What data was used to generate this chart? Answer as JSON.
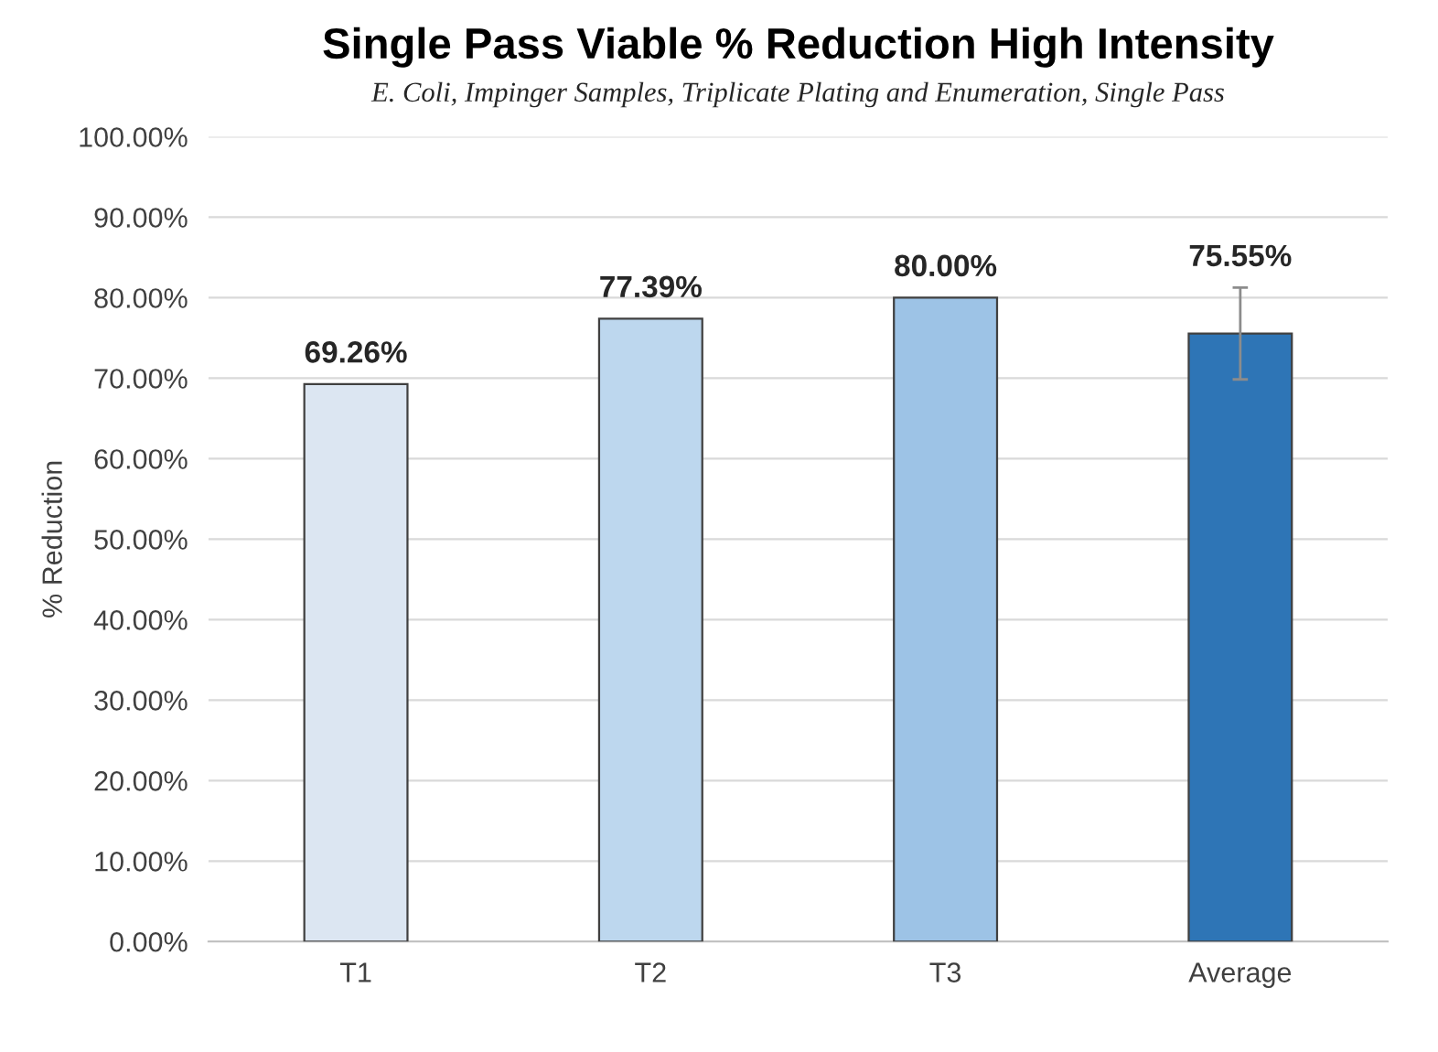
{
  "chart_data": {
    "type": "bar",
    "title": "Single Pass Viable % Reduction High Intensity",
    "subtitle": "E. Coli, Impinger Samples, Triplicate Plating and Enumeration, Single Pass",
    "ylabel": "% Reduction",
    "categories": [
      "T1",
      "T2",
      "T3",
      "Average"
    ],
    "values": [
      69.26,
      77.39,
      80.0,
      75.55
    ],
    "colors": [
      "#dce6f2",
      "#bdd7ee",
      "#9dc3e6",
      "#2e75b6"
    ],
    "errors": [
      null,
      null,
      null,
      5.7
    ],
    "value_labels": [
      "69.26%",
      "77.39%",
      "80.00%",
      "75.55%"
    ],
    "ylim": [
      0,
      100
    ],
    "yticks": [
      {
        "value": 0,
        "label": "0.00%"
      },
      {
        "value": 10,
        "label": "10.00%"
      },
      {
        "value": 20,
        "label": "20.00%"
      },
      {
        "value": 30,
        "label": "30.00%"
      },
      {
        "value": 40,
        "label": "40.00%"
      },
      {
        "value": 50,
        "label": "50.00%"
      },
      {
        "value": 60,
        "label": "60.00%"
      },
      {
        "value": 70,
        "label": "70.00%"
      },
      {
        "value": 80,
        "label": "80.00%"
      },
      {
        "value": 90,
        "label": "90.00%"
      },
      {
        "value": 100,
        "label": "100.00%"
      }
    ],
    "grid": "y"
  }
}
